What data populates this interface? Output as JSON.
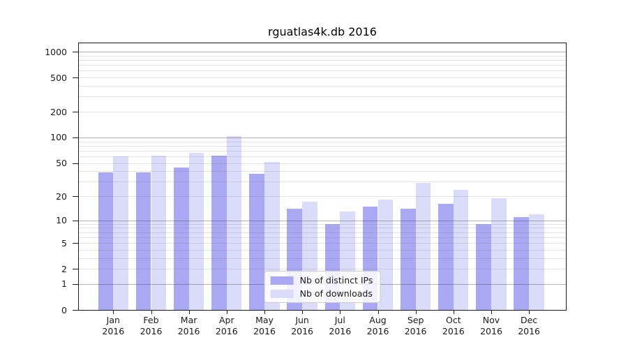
{
  "chart_data": {
    "type": "bar",
    "title": "rguatlas4k.db 2016",
    "categories": [
      "Jan",
      "Feb",
      "Mar",
      "Apr",
      "May",
      "Jun",
      "Jul",
      "Aug",
      "Sep",
      "Oct",
      "Nov",
      "Dec"
    ],
    "category_year": "2016",
    "series": [
      {
        "name": "Nb of distinct IPs",
        "color": "#a8a8f3",
        "values": [
          39,
          39,
          44,
          61,
          37,
          14,
          9,
          15,
          14,
          16,
          9,
          11
        ]
      },
      {
        "name": "Nb of downloads",
        "color": "#dbdbfa",
        "values": [
          60,
          61,
          66,
          103,
          51,
          17,
          13,
          18,
          29,
          24,
          19,
          12
        ]
      }
    ],
    "y_ticks": [
      1000,
      500,
      200,
      100,
      50,
      20,
      10,
      5,
      2,
      1,
      0
    ],
    "y_scale": "log1p",
    "ylim": [
      0,
      1275
    ],
    "xlabel": "",
    "ylabel": "",
    "grid": "horizontal, log major + minor",
    "legend_position": "lower center"
  },
  "colors": {
    "background": "#ffffff",
    "axis": "#1a1a1a",
    "major_grid": "#b3b3b3",
    "minor_grid": "#e4e4e4"
  }
}
